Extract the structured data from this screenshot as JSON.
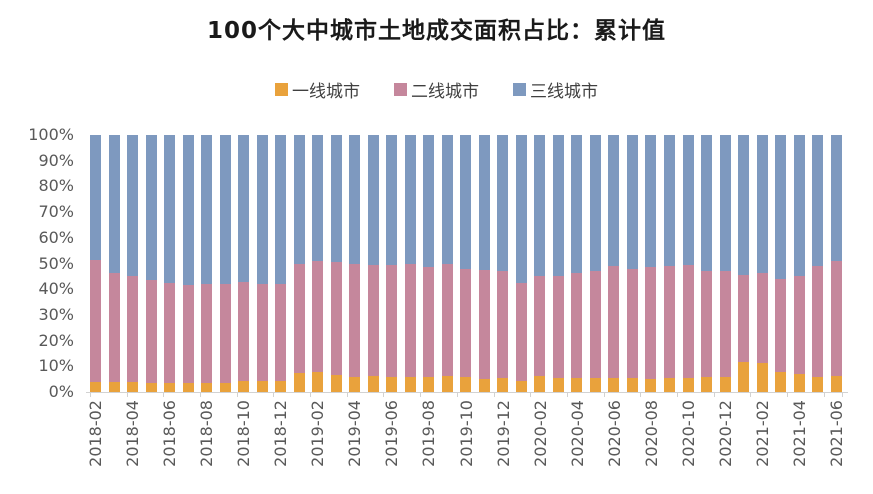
{
  "title": "100个大中城市土地成交面积占比：累计值",
  "legend": [
    {
      "label": "一线城市",
      "color": "#E9A23C"
    },
    {
      "label": "二线城市",
      "color": "#C5879C"
    },
    {
      "label": "三线城市",
      "color": "#7E99BF"
    }
  ],
  "axes": {
    "y_tick_labels": [
      "100%",
      "90%",
      "80%",
      "70%",
      "60%",
      "50%",
      "40%",
      "30%",
      "20%",
      "10%",
      "0%"
    ],
    "x_label_every": 2
  },
  "colors": {
    "axis_line": "#d2d2d2",
    "tick": "#d2d2d2",
    "axis_text": "#595959",
    "title_text": "#1a1a1a"
  },
  "chart_data": {
    "type": "bar",
    "stacked": true,
    "percent_stacked": true,
    "title": "100个大中城市土地成交面积占比：累计值",
    "xlabel": "",
    "ylabel": "",
    "ylim": [
      0,
      100
    ],
    "grid": false,
    "legend_position": "top",
    "categories": [
      "2018-02",
      "2018-03",
      "2018-04",
      "2018-05",
      "2018-06",
      "2018-07",
      "2018-08",
      "2018-09",
      "2018-10",
      "2018-11",
      "2018-12",
      "2019-01",
      "2019-02",
      "2019-03",
      "2019-04",
      "2019-05",
      "2019-06",
      "2019-07",
      "2019-08",
      "2019-09",
      "2019-10",
      "2019-11",
      "2019-12",
      "2020-01",
      "2020-02",
      "2020-03",
      "2020-04",
      "2020-05",
      "2020-06",
      "2020-07",
      "2020-08",
      "2020-09",
      "2020-10",
      "2020-11",
      "2020-12",
      "2021-01",
      "2021-02",
      "2021-03",
      "2021-04",
      "2021-05",
      "2021-06"
    ],
    "series": [
      {
        "name": "一线城市",
        "color": "#E9A23C",
        "values": [
          4.0,
          3.8,
          3.9,
          3.5,
          3.7,
          3.5,
          3.5,
          3.7,
          4.1,
          4.3,
          4.1,
          7.3,
          7.7,
          6.6,
          5.9,
          6.2,
          5.8,
          5.8,
          5.8,
          6.2,
          5.8,
          5.2,
          5.6,
          4.4,
          6.3,
          5.5,
          5.5,
          5.3,
          5.3,
          5.5,
          5.2,
          5.6,
          5.6,
          5.7,
          5.7,
          11.5,
          11.3,
          7.6,
          7.0,
          5.7,
          6.2
        ]
      },
      {
        "name": "二线城市",
        "color": "#C5879C",
        "values": [
          47.5,
          42.5,
          41.1,
          40.1,
          38.6,
          38.0,
          38.5,
          38.5,
          38.9,
          37.9,
          37.9,
          42.7,
          43.3,
          43.9,
          44.1,
          43.3,
          43.7,
          44.2,
          42.7,
          43.5,
          42.2,
          42.3,
          41.4,
          38.1,
          39.0,
          39.8,
          40.9,
          41.7,
          43.9,
          42.4,
          43.6,
          43.4,
          43.8,
          41.3,
          41.2,
          34.2,
          35.0,
          36.2,
          38.1,
          43.3,
          44.7
        ]
      },
      {
        "name": "三线城市",
        "color": "#7E99BF",
        "values": [
          48.5,
          53.7,
          55.0,
          56.4,
          57.7,
          58.5,
          58.0,
          57.8,
          57.0,
          57.8,
          58.0,
          50.0,
          49.0,
          49.5,
          50.0,
          50.5,
          50.5,
          50.0,
          51.5,
          50.3,
          52.0,
          52.5,
          53.0,
          57.5,
          54.7,
          54.7,
          53.6,
          53.0,
          50.8,
          52.1,
          51.2,
          51.0,
          50.6,
          53.0,
          53.1,
          54.3,
          53.7,
          56.2,
          54.9,
          51.0,
          49.1
        ]
      }
    ]
  }
}
